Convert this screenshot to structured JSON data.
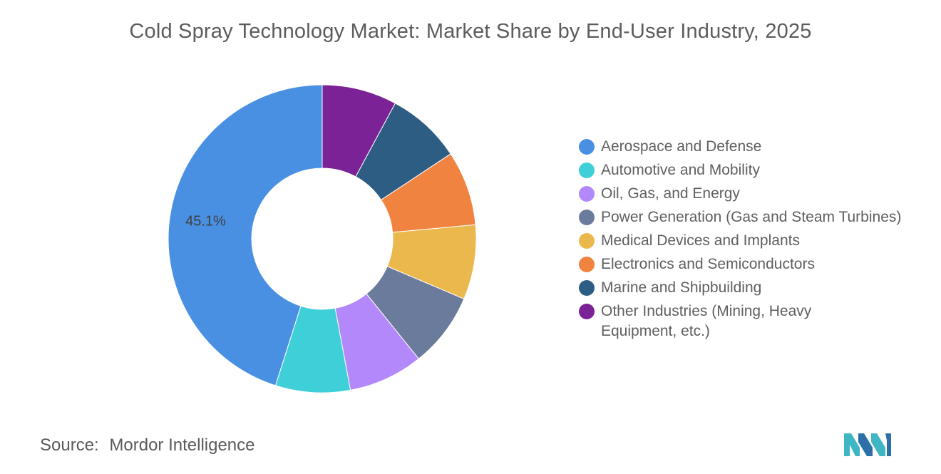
{
  "title": "Cold Spray Technology Market: Market Share by End-User Industry, 2025",
  "source_label": "Source:",
  "source_value": "Mordor Intelligence",
  "logo_name": "mordor-intelligence-logo",
  "chart_data": {
    "type": "pie",
    "variant": "donut",
    "title": "Cold Spray Technology Market: Market Share by End-User Industry, 2025",
    "categories": [
      "Aerospace and Defense",
      "Automotive and Mobility",
      "Oil, Gas, and Energy",
      "Power Generation (Gas and Steam Turbines)",
      "Medical Devices and Implants",
      "Electronics and Semiconductors",
      "Marine and Shipbuilding",
      "Other Industries (Mining, Heavy Equipment, etc.)"
    ],
    "values": [
      45.1,
      7.84,
      7.84,
      7.84,
      7.84,
      7.84,
      7.84,
      7.86
    ],
    "unit": "%",
    "data_labels": [
      "45.1%",
      "",
      "",
      "",
      "",
      "",
      "",
      ""
    ],
    "colors": [
      "#4a90e2",
      "#3ecfd9",
      "#b388fb",
      "#6a7b9c",
      "#ebb84d",
      "#f08340",
      "#2e5d84",
      "#7b2296"
    ],
    "legend_position": "right",
    "start_angle_deg": 0,
    "direction": "counterclockwise"
  }
}
